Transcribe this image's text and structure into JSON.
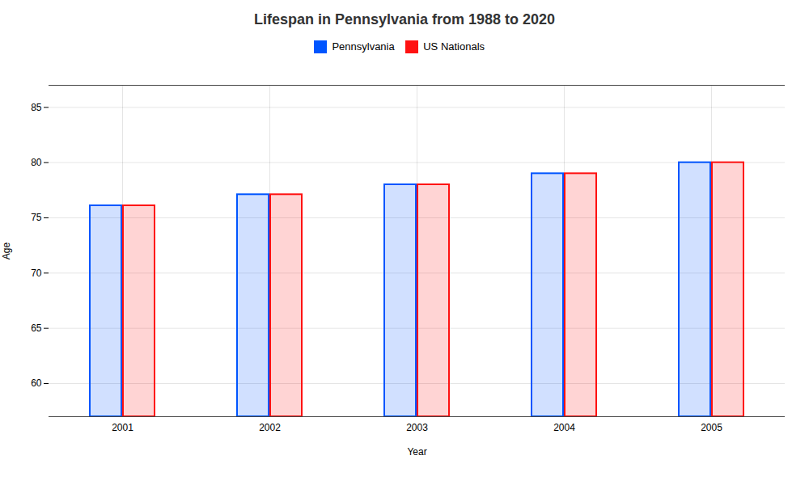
{
  "chart_data": {
    "type": "bar",
    "title": "Lifespan in Pennsylvania from 1988 to 2020",
    "xlabel": "Year",
    "ylabel": "Age",
    "categories": [
      "2001",
      "2002",
      "2003",
      "2004",
      "2005"
    ],
    "series": [
      {
        "name": "Pennsylvania",
        "color": "#0055ff",
        "values": [
          76.1,
          77.1,
          78.0,
          79.0,
          80.0
        ]
      },
      {
        "name": "US Nationals",
        "color": "#ff1111",
        "values": [
          76.1,
          77.1,
          78.0,
          79.0,
          80.0
        ]
      }
    ],
    "ylim": [
      57,
      87
    ],
    "yticks": [
      60,
      65,
      70,
      75,
      80,
      85
    ],
    "grid": true,
    "legend": "top"
  }
}
